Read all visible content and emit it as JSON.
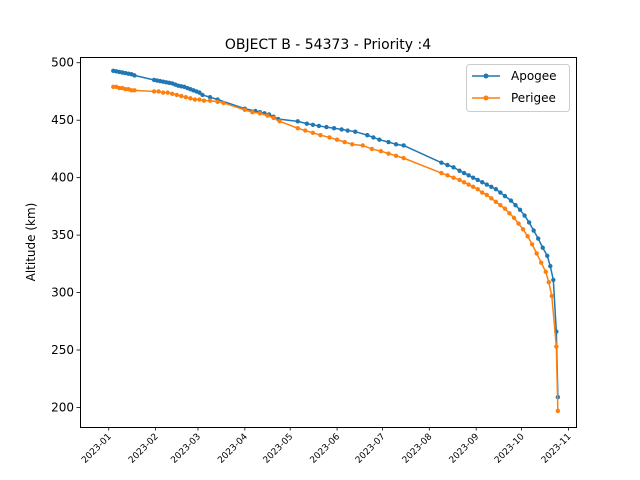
{
  "chart_data": {
    "type": "line",
    "title": "OBJECT B - 54373 - Priority :4",
    "xlabel": "",
    "ylabel": "Altitude (km)",
    "x_tick_labels": [
      "2023-01",
      "2023-02",
      "2023-03",
      "2023-04",
      "2023-05",
      "2023-06",
      "2023-07",
      "2023-08",
      "2023-09",
      "2023-10",
      "2023-11"
    ],
    "y_ticks": [
      200,
      250,
      300,
      350,
      400,
      450,
      500
    ],
    "xlim": [
      "2022-12-13",
      "2023-11-06"
    ],
    "ylim": [
      183,
      505
    ],
    "legend_position": "top-right",
    "grid": false,
    "series": [
      {
        "name": "Apogee",
        "color": "#1f77b4",
        "points": [
          [
            "2023-01-04",
            493
          ],
          [
            "2023-01-06",
            492.5
          ],
          [
            "2023-01-08",
            492
          ],
          [
            "2023-01-10",
            491.5
          ],
          [
            "2023-01-12",
            491
          ],
          [
            "2023-01-14",
            490.5
          ],
          [
            "2023-01-16",
            490
          ],
          [
            "2023-01-18",
            489
          ],
          [
            "2023-01-31",
            485
          ],
          [
            "2023-02-02",
            484.5
          ],
          [
            "2023-02-04",
            484
          ],
          [
            "2023-02-06",
            483.5
          ],
          [
            "2023-02-08",
            483
          ],
          [
            "2023-02-10",
            482.5
          ],
          [
            "2023-02-12",
            482
          ],
          [
            "2023-02-14",
            481
          ],
          [
            "2023-02-16",
            480
          ],
          [
            "2023-02-18",
            479.5
          ],
          [
            "2023-02-20",
            479
          ],
          [
            "2023-02-22",
            478
          ],
          [
            "2023-02-24",
            477
          ],
          [
            "2023-02-26",
            476
          ],
          [
            "2023-02-28",
            475
          ],
          [
            "2023-03-02",
            474
          ],
          [
            "2023-03-04",
            472
          ],
          [
            "2023-03-09",
            470
          ],
          [
            "2023-03-14",
            468
          ],
          [
            "2023-04-01",
            460
          ],
          [
            "2023-04-08",
            458
          ],
          [
            "2023-04-11",
            457
          ],
          [
            "2023-04-14",
            456
          ],
          [
            "2023-04-17",
            455
          ],
          [
            "2023-04-20",
            453
          ],
          [
            "2023-04-23",
            451
          ],
          [
            "2023-05-06",
            449
          ],
          [
            "2023-05-12",
            447
          ],
          [
            "2023-05-16",
            446
          ],
          [
            "2023-05-20",
            445
          ],
          [
            "2023-05-25",
            444
          ],
          [
            "2023-05-30",
            443
          ],
          [
            "2023-06-04",
            442
          ],
          [
            "2023-06-08",
            441
          ],
          [
            "2023-06-13",
            440
          ],
          [
            "2023-06-21",
            437
          ],
          [
            "2023-06-25",
            435
          ],
          [
            "2023-06-29",
            433
          ],
          [
            "2023-07-05",
            431
          ],
          [
            "2023-07-10",
            429
          ],
          [
            "2023-07-15",
            428
          ],
          [
            "2023-08-09",
            413
          ],
          [
            "2023-08-13",
            411
          ],
          [
            "2023-08-17",
            409
          ],
          [
            "2023-08-21",
            406
          ],
          [
            "2023-08-24",
            404
          ],
          [
            "2023-08-27",
            402
          ],
          [
            "2023-08-30",
            400
          ],
          [
            "2023-09-02",
            398
          ],
          [
            "2023-09-05",
            396
          ],
          [
            "2023-09-08",
            394
          ],
          [
            "2023-09-11",
            392
          ],
          [
            "2023-09-14",
            390
          ],
          [
            "2023-09-17",
            387
          ],
          [
            "2023-09-20",
            384
          ],
          [
            "2023-09-24",
            380
          ],
          [
            "2023-09-27",
            376
          ],
          [
            "2023-09-30",
            372
          ],
          [
            "2023-10-03",
            367
          ],
          [
            "2023-10-06",
            361
          ],
          [
            "2023-10-09",
            354
          ],
          [
            "2023-10-12",
            347
          ],
          [
            "2023-10-15",
            339
          ],
          [
            "2023-10-18",
            332
          ],
          [
            "2023-10-20",
            323
          ],
          [
            "2023-10-22",
            311
          ],
          [
            "2023-10-24",
            266
          ],
          [
            "2023-10-25",
            209
          ]
        ]
      },
      {
        "name": "Perigee",
        "color": "#ff7f0e",
        "points": [
          [
            "2023-01-04",
            479
          ],
          [
            "2023-01-06",
            479
          ],
          [
            "2023-01-08",
            478
          ],
          [
            "2023-01-10",
            478
          ],
          [
            "2023-01-12",
            477
          ],
          [
            "2023-01-14",
            477
          ],
          [
            "2023-01-16",
            476
          ],
          [
            "2023-01-18",
            476
          ],
          [
            "2023-01-31",
            475
          ],
          [
            "2023-02-03",
            475
          ],
          [
            "2023-02-06",
            474
          ],
          [
            "2023-02-09",
            474
          ],
          [
            "2023-02-12",
            473
          ],
          [
            "2023-02-15",
            472
          ],
          [
            "2023-02-18",
            471
          ],
          [
            "2023-02-21",
            470
          ],
          [
            "2023-02-24",
            469
          ],
          [
            "2023-02-27",
            468
          ],
          [
            "2023-03-02",
            468
          ],
          [
            "2023-03-05",
            467
          ],
          [
            "2023-03-09",
            467
          ],
          [
            "2023-03-14",
            466
          ],
          [
            "2023-03-18",
            465
          ],
          [
            "2023-04-01",
            459
          ],
          [
            "2023-04-06",
            457
          ],
          [
            "2023-04-11",
            456
          ],
          [
            "2023-04-16",
            454
          ],
          [
            "2023-04-20",
            452
          ],
          [
            "2023-04-24",
            449
          ],
          [
            "2023-05-06",
            443
          ],
          [
            "2023-05-11",
            441
          ],
          [
            "2023-05-16",
            439
          ],
          [
            "2023-05-21",
            437
          ],
          [
            "2023-05-27",
            435
          ],
          [
            "2023-06-01",
            433
          ],
          [
            "2023-06-06",
            431
          ],
          [
            "2023-06-11",
            429
          ],
          [
            "2023-06-18",
            428
          ],
          [
            "2023-06-24",
            425
          ],
          [
            "2023-06-30",
            423
          ],
          [
            "2023-07-05",
            421
          ],
          [
            "2023-07-10",
            419
          ],
          [
            "2023-07-15",
            417
          ],
          [
            "2023-08-09",
            404
          ],
          [
            "2023-08-13",
            402
          ],
          [
            "2023-08-17",
            400
          ],
          [
            "2023-08-21",
            398
          ],
          [
            "2023-08-24",
            396
          ],
          [
            "2023-08-27",
            394
          ],
          [
            "2023-08-30",
            392
          ],
          [
            "2023-09-02",
            390
          ],
          [
            "2023-09-05",
            387
          ],
          [
            "2023-09-08",
            385
          ],
          [
            "2023-09-11",
            382
          ],
          [
            "2023-09-14",
            379
          ],
          [
            "2023-09-17",
            376
          ],
          [
            "2023-09-20",
            373
          ],
          [
            "2023-09-23",
            369
          ],
          [
            "2023-09-26",
            365
          ],
          [
            "2023-09-29",
            360
          ],
          [
            "2023-10-02",
            355
          ],
          [
            "2023-10-05",
            349
          ],
          [
            "2023-10-08",
            342
          ],
          [
            "2023-10-11",
            334
          ],
          [
            "2023-10-14",
            326
          ],
          [
            "2023-10-17",
            318
          ],
          [
            "2023-10-19",
            309
          ],
          [
            "2023-10-21",
            297
          ],
          [
            "2023-10-24",
            253
          ],
          [
            "2023-10-25",
            197
          ]
        ]
      }
    ]
  }
}
